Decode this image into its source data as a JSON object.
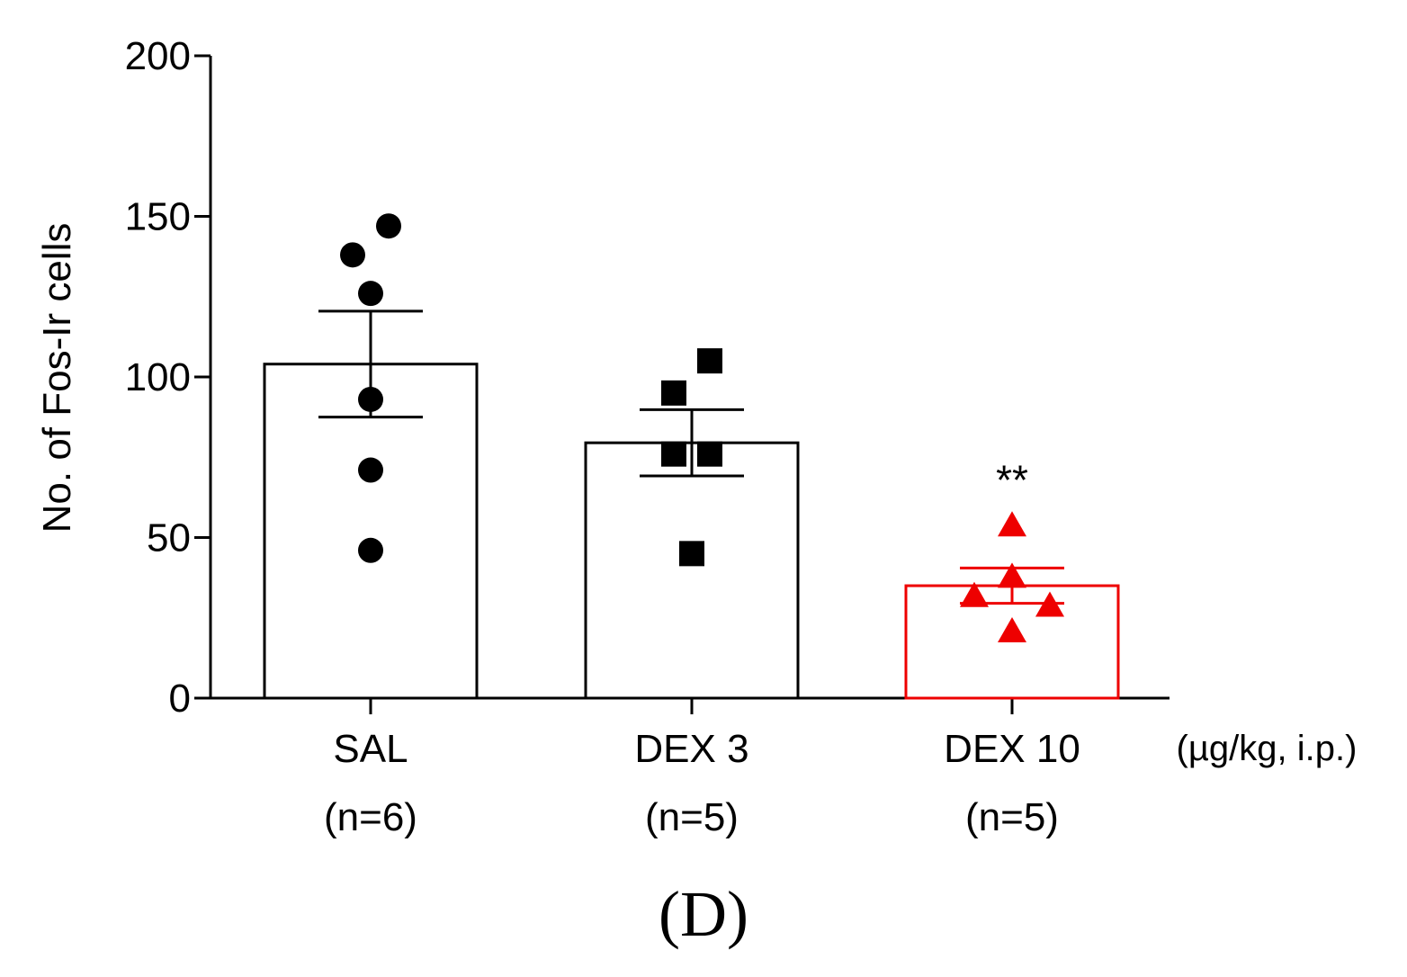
{
  "chart_data": {
    "type": "bar",
    "title": "",
    "ylabel": "No. of Fos-Ir cells",
    "xlabel": "",
    "ylim": [
      0,
      200
    ],
    "yticks": [
      0,
      50,
      100,
      150,
      200
    ],
    "unit_label": "(µg/kg, i.p.)",
    "panel_label": "(D)",
    "categories": [
      {
        "name": "SAL",
        "n_label": "(n=6)",
        "mean": 104,
        "sem": 16.5,
        "marker": "circle",
        "color": "#000000",
        "significance": "",
        "points": [
          147,
          138,
          126,
          93,
          71,
          46
        ]
      },
      {
        "name": "DEX 3",
        "n_label": "(n=5)",
        "mean": 79.5,
        "sem": 10.3,
        "marker": "square",
        "color": "#000000",
        "significance": "",
        "points": [
          105,
          95,
          76,
          76,
          45
        ]
      },
      {
        "name": "DEX 10",
        "n_label": "(n=5)",
        "mean": 35,
        "sem": 5.5,
        "marker": "triangle",
        "color": "#ee0000",
        "significance": "**",
        "points": [
          54,
          38,
          32,
          29,
          21
        ]
      }
    ]
  }
}
